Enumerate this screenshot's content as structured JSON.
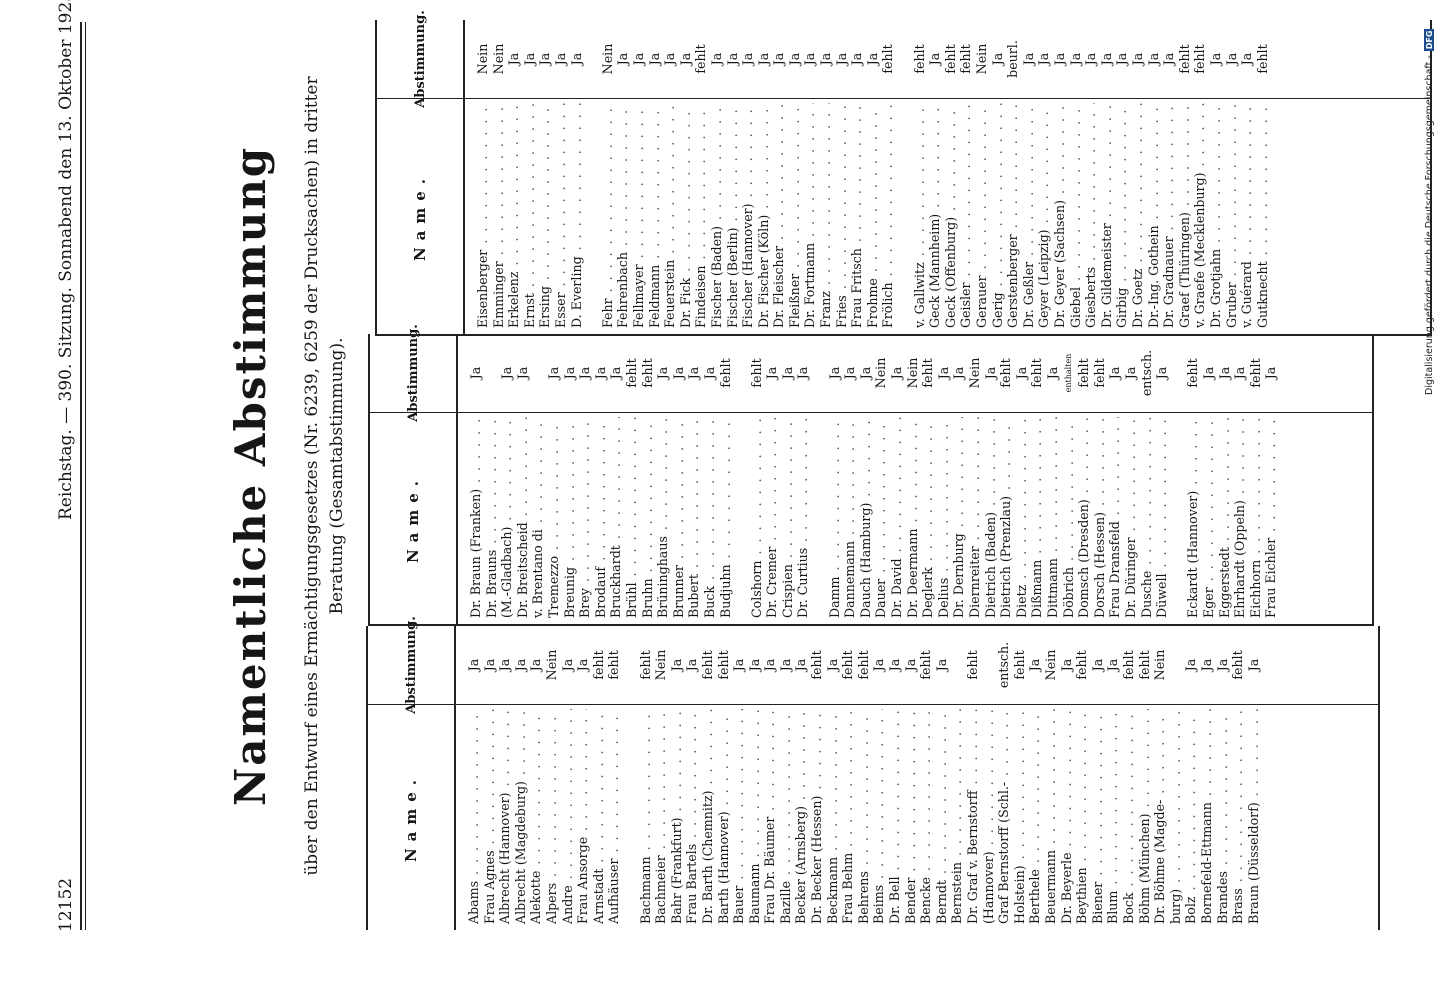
{
  "header": {
    "page_number": "12152",
    "running_title": "Reichstag. — 390. Sitzung. Sonnabend den 13. Oktober 1923."
  },
  "document": {
    "title": "Namentliche Abstimmung",
    "subtitle_line1": "über den Entwurf eines Ermächtigungsgesetzes (Nr. 6239, 6259 der Drucksachen) in dritter",
    "subtitle_line2": "Beratung (Gesamtabstimmung)."
  },
  "table_headers": {
    "name": "Name.",
    "vote": "Abstimmung."
  },
  "credit": {
    "text": "Digitalisierung gefördert durch die Deutsche Forschungsgemeinschaft -",
    "logo": "DFG"
  },
  "columns": [
    {
      "names": [
        "Abams",
        "Frau Agnes",
        "Albrecht (Hannover)",
        "Albrecht (Magdeburg)",
        "Alekotte",
        "Alpers",
        "Andre",
        "Frau Ansorge",
        "Arnstadt",
        "Aufhäuser",
        "",
        "Bachmann",
        "Bachmeier",
        "Bahr (Frankfurt)",
        "Frau Bartels",
        "Dr. Barth (Chemnitz)",
        "Barth (Hannover)",
        "Bauer",
        "Baumann",
        "Frau Dr. Bäumer",
        "Bazille",
        "Becker (Arnsberg)",
        "Dr. Becker (Hessen)",
        "Beckmann",
        "Frau Behm",
        "Behrens",
        "Beims",
        "Dr. Bell",
        "Bender",
        "Bencke",
        "Berndt",
        "Bernstein",
        "Dr. Graf v. Bernstorff",
        "(Hannover)",
        "Graf Bernstorff (Schl.-",
        "Holstein)",
        "Berthele",
        "Beuermann",
        "Dr. Beyerle",
        "Beythien",
        "Biener",
        "Blum",
        "Bock",
        "Böhm (München)",
        "Dr. Böhme (Magde-",
        "burg)",
        "Bolz",
        "Bornefeld-Ettmann",
        "Brandes",
        "Brass",
        "Braun (Düsseldorf)"
      ],
      "votes": [
        "Ja",
        "Ja",
        "Ja",
        "Ja",
        "Ja",
        "Nein",
        "Ja",
        "Ja",
        "fehlt",
        "fehlt",
        "",
        "fehlt",
        "Nein",
        "Ja",
        "Ja",
        "fehlt",
        "fehlt",
        "Ja",
        "Ja",
        "Ja",
        "Ja",
        "Ja",
        "fehlt",
        "Ja",
        "fehlt",
        "fehlt",
        "Ja",
        "Ja",
        "Ja",
        "fehlt",
        "Ja",
        "",
        "fehlt",
        "",
        "entsch.",
        "fehlt",
        "Ja",
        "Nein",
        "Ja",
        "fehlt",
        "Ja",
        "Ja",
        "fehlt",
        "fehlt",
        "Nein",
        "",
        "Ja",
        "Ja",
        "Ja",
        "fehlt",
        "Ja"
      ]
    },
    {
      "names": [
        "Dr. Braun (Franken)",
        "Dr. Brauns",
        "(M.-Gladbach)",
        "Dr. Breitscheid",
        "v. Brentano di",
        "Tremezzo",
        "Breunig",
        "Brey",
        "Brodauf",
        "Bruckhardt",
        "Brühl",
        "Bruhn",
        "Brüninghaus",
        "Brunner",
        "Bubert",
        "Buck",
        "Budjuhn",
        "",
        "Colshorn",
        "Dr. Cremer",
        "Crispien",
        "Dr. Curtius",
        "",
        "Damm",
        "Dannemann",
        "Dauch (Hamburg)",
        "Dauer",
        "Dr. David",
        "Dr. Deermann",
        "Deglerk",
        "Delius",
        "Dr. Dernburg",
        "Diernreiter",
        "Dietrich (Baden)",
        "Dietrich (Prenzlau)",
        "Dietz",
        "Dißmann",
        "Dittmann",
        "Döbrich",
        "Domsch (Dresden)",
        "Dorsch (Hessen)",
        "Frau Dransfeld",
        "Dr. Düringer",
        "Dusche",
        "Düwell",
        "",
        "Eckardt (Hannover)",
        "Eger",
        "Eggerstedt",
        "Ehrhardt (Oppeln)",
        "Eichhorn",
        "Frau Eichler"
      ],
      "votes": [
        "Ja",
        "",
        "Ja",
        "Ja",
        "",
        "Ja",
        "Ja",
        "Ja",
        "Ja",
        "Ja",
        "fehlt",
        "fehlt",
        "Ja",
        "Ja",
        "Ja",
        "Ja",
        "fehlt",
        "",
        "fehlt",
        "Ja",
        "Ja",
        "Ja",
        "",
        "Ja",
        "Ja",
        "Ja",
        "Nein",
        "Ja",
        "Nein",
        "fehlt",
        "Ja",
        "Ja",
        "Nein",
        "Ja",
        "fehlt",
        "Ja",
        "fehlt",
        "Ja",
        "enthalten",
        "fehlt",
        "fehlt",
        "Ja",
        "Ja",
        "entsch.",
        "Ja",
        "",
        "fehlt",
        "Ja",
        "Ja",
        "Ja",
        "fehlt",
        "Ja"
      ]
    },
    {
      "names": [
        "Eisenberger",
        "Emminger",
        "Erkelenz",
        "Ernst",
        "Ersing",
        "Esser",
        "D. Everling",
        "",
        "Fehr",
        "Fehrenbach",
        "Fellmayer",
        "Feldmann",
        "Feuerstein",
        "Dr. Fick",
        "Findeisen",
        "Fischer (Baden)",
        "Fischer (Berlin)",
        "Fischer (Hannover)",
        "Dr. Fischer (Köln)",
        "Dr. Fleischer",
        "Fleißner",
        "Dr. Fortmann",
        "Franz",
        "Fries",
        "Frau Fritsch",
        "Frohme",
        "Frölich",
        "",
        "v. Gallwitz",
        "Geck (Mannheim)",
        "Geck (Offenburg)",
        "Geisler",
        "Gerauer",
        "Gerig",
        "Gerstenberger",
        "Dr. Geßler",
        "Geyer (Leipzig)",
        "Dr. Geyer (Sachsen)",
        "Giebel",
        "Giesberts",
        "Dr. Gildemeister",
        "Girbig",
        "Dr. Goetz",
        "Dr.-Ing. Gothein",
        "Dr. Gradnauer",
        "Graef (Thüringen)",
        "v. Graefe (Mecklenburg)",
        "Dr. Grotjahn",
        "Gruber",
        "v. Guérard",
        "Gutknecht"
      ],
      "votes": [
        "Nein",
        "Nein",
        "Ja",
        "Ja",
        "Ja",
        "Ja",
        "Ja",
        "",
        "Nein",
        "Ja",
        "Ja",
        "Ja",
        "Ja",
        "Ja",
        "fehlt",
        "Ja",
        "Ja",
        "Ja",
        "Ja",
        "Ja",
        "Ja",
        "Ja",
        "Ja",
        "Ja",
        "Ja",
        "Ja",
        "fehlt",
        "",
        "fehlt",
        "Ja",
        "fehlt",
        "fehlt",
        "Nein",
        "Ja",
        "beurl.",
        "Ja",
        "Ja",
        "Ja",
        "Ja",
        "Ja",
        "Ja",
        "Ja",
        "Ja",
        "Ja",
        "Ja",
        "fehlt",
        "fehlt",
        "Ja",
        "Ja",
        "Ja",
        "fehlt"
      ]
    }
  ]
}
